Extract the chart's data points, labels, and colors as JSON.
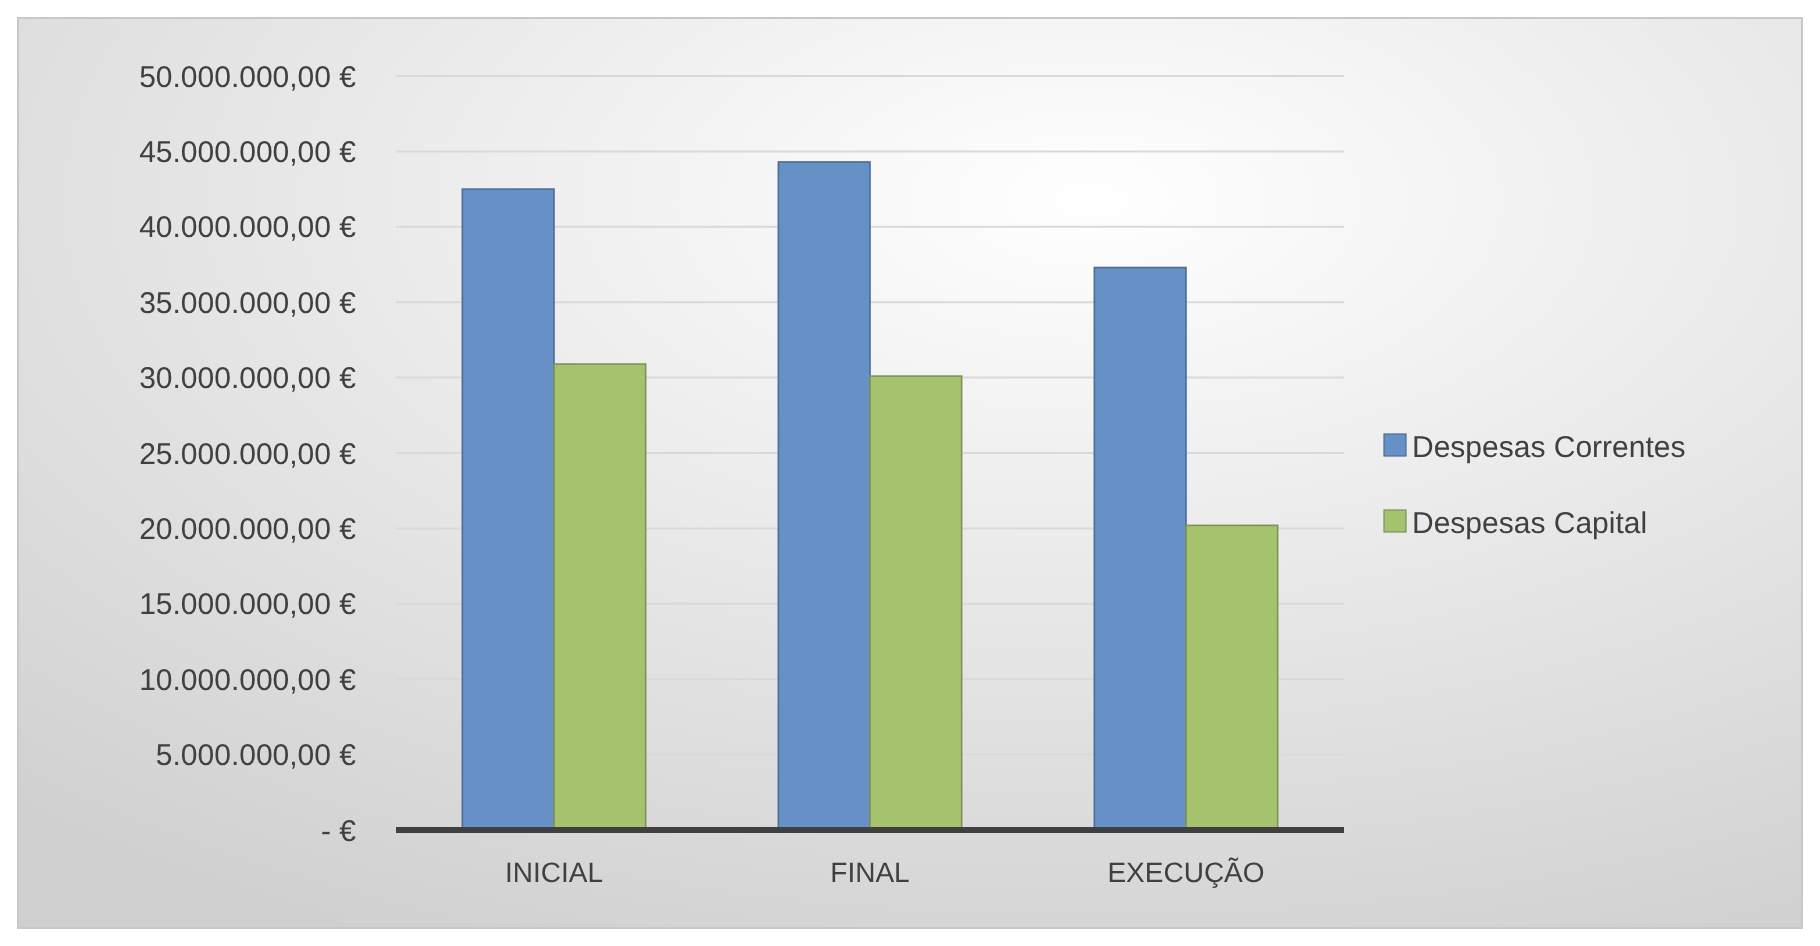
{
  "chart_data": {
    "type": "bar",
    "categories": [
      "INICIAL",
      "FINAL",
      "EXECUÇÃO"
    ],
    "series": [
      {
        "name": "Despesas Correntes",
        "color": "#6591c6",
        "values": [
          42500000,
          44300000,
          37300000
        ]
      },
      {
        "name": "Despesas Capital",
        "color": "#a5c36e",
        "values": [
          30900000,
          30100000,
          20200000
        ]
      }
    ],
    "ylim": [
      0,
      50000000
    ],
    "yticks": [
      {
        "value": 0,
        "label": "-   €"
      },
      {
        "value": 5000000,
        "label": "5.000.000,00 €"
      },
      {
        "value": 10000000,
        "label": "10.000.000,00 €"
      },
      {
        "value": 15000000,
        "label": "15.000.000,00 €"
      },
      {
        "value": 20000000,
        "label": "20.000.000,00 €"
      },
      {
        "value": 25000000,
        "label": "25.000.000,00 €"
      },
      {
        "value": 30000000,
        "label": "30.000.000,00 €"
      },
      {
        "value": 35000000,
        "label": "35.000.000,00 €"
      },
      {
        "value": 40000000,
        "label": "40.000.000,00 €"
      },
      {
        "value": 45000000,
        "label": "45.000.000,00 €"
      },
      {
        "value": 50000000,
        "label": "50.000.000,00 €"
      }
    ],
    "grid": "y",
    "legend": "right"
  }
}
